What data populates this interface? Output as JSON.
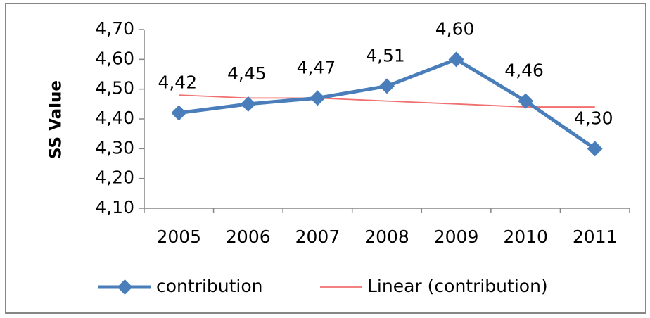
{
  "chart_data": {
    "type": "line",
    "y_label": "SS Value",
    "categories": [
      "2005",
      "2006",
      "2007",
      "2008",
      "2009",
      "2010",
      "2011"
    ],
    "series": [
      {
        "name": "contribution",
        "color": "#4a7ebb",
        "marker": "diamond",
        "values": [
          4.42,
          4.45,
          4.47,
          4.51,
          4.6,
          4.46,
          4.3
        ],
        "value_labels": [
          "4,42",
          "4,45",
          "4,47",
          "4,51",
          "4,60",
          "4,46",
          "4,30"
        ]
      },
      {
        "name": "Linear (contribution)",
        "color": "#f07070",
        "values": [
          4.48,
          4.47,
          4.47,
          4.46,
          4.45,
          4.44,
          4.44
        ]
      }
    ],
    "ylim": [
      4.1,
      4.7
    ],
    "yticks": [
      {
        "value": 4.1,
        "label": "4,10"
      },
      {
        "value": 4.2,
        "label": "4,20"
      },
      {
        "value": 4.3,
        "label": "4,30"
      },
      {
        "value": 4.4,
        "label": "4,40"
      },
      {
        "value": 4.5,
        "label": "4,50"
      },
      {
        "value": 4.6,
        "label": "4,60"
      },
      {
        "value": 4.7,
        "label": "4,70"
      }
    ],
    "grid": false
  }
}
